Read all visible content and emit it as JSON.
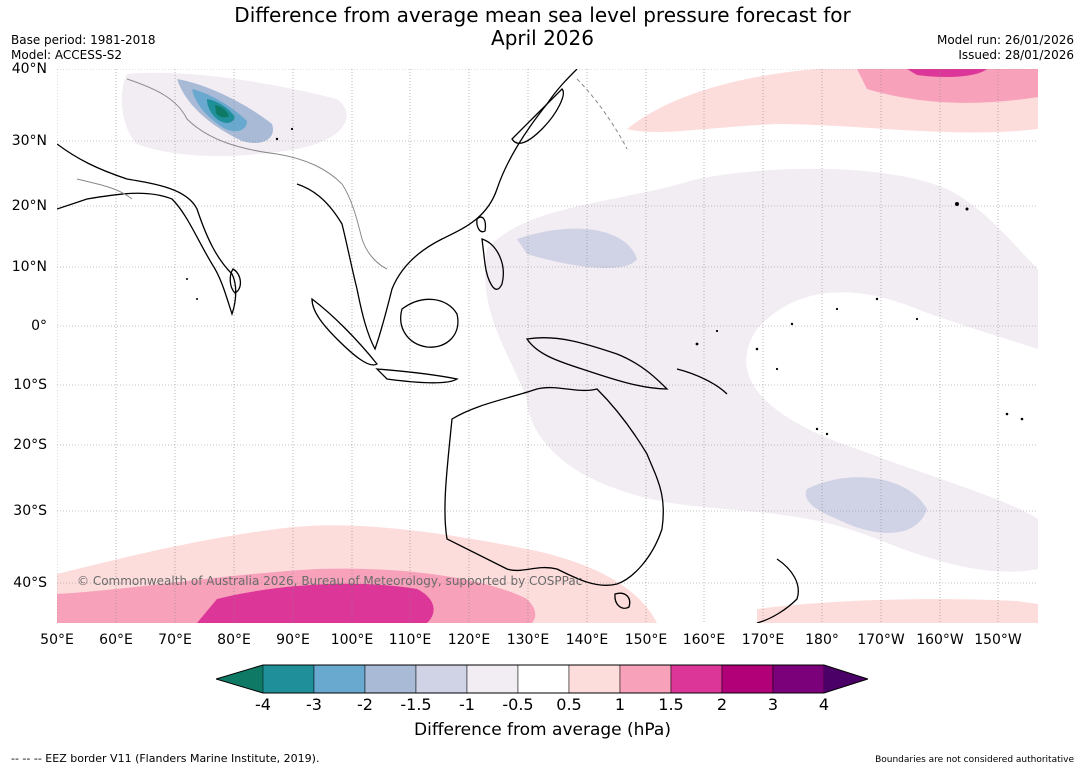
{
  "title_line1": "Difference from average mean sea level pressure forecast for",
  "title_line2": "April 2026",
  "base_period": "Base period: 1981-2018",
  "model": "Model: ACCESS-S2",
  "model_run": "Model run: 26/01/2026",
  "issued": "Issued: 28/01/2026",
  "lat_labels": [
    "40°N",
    "30°N",
    "20°N",
    "10°N",
    "0°",
    "10°S",
    "20°S",
    "30°S",
    "40°S"
  ],
  "lon_labels": [
    "50°E",
    "60°E",
    "70°E",
    "80°E",
    "90°E",
    "100°E",
    "110°E",
    "120°E",
    "130°E",
    "140°E",
    "150°E",
    "160°E",
    "170°E",
    "180°",
    "170°W",
    "160°W",
    "150°W"
  ],
  "colorbar": {
    "ticks": [
      "-4",
      "-3",
      "-2",
      "-1.5",
      "-1",
      "-0.5",
      "0.5",
      "1",
      "1.5",
      "2",
      "3",
      "4"
    ],
    "colors": [
      "#0e7a66",
      "#1f8f99",
      "#69a8cf",
      "#a8bad6",
      "#d0d2e5",
      "#f2ecf3",
      "#ffffff",
      "#fddcdc",
      "#f7a1ba",
      "#dc3798",
      "#b10078",
      "#7b017a",
      "#4a0067"
    ],
    "label": "Difference from average (hPa)"
  },
  "copyright": "© Commonwealth of Australia 2026, Bureau of Meteorology, supported by COSPPac",
  "eez_note": "--  --  -- EEZ border V11 (Flanders Marine Institute, 2019).",
  "boundary_note": "Boundaries are not considered authoritative",
  "colors": {
    "land_outline": "#000000",
    "border": "#8a8a8a",
    "grid": "#888888"
  }
}
